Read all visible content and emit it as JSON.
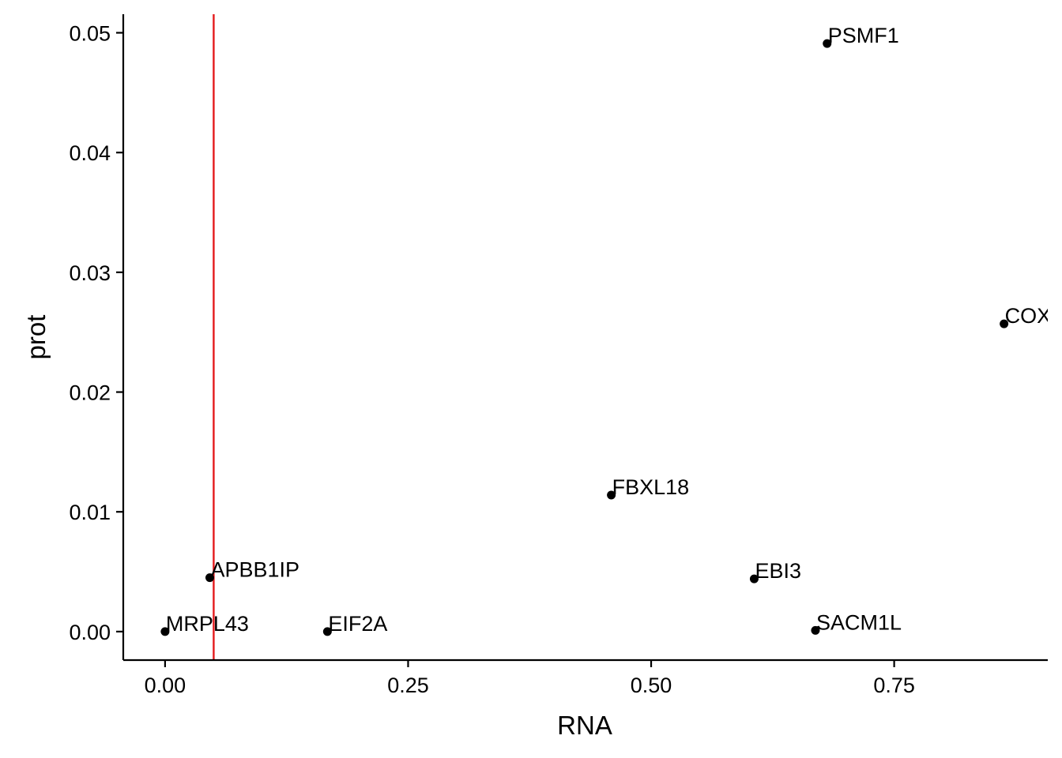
{
  "chart_data": {
    "type": "scatter",
    "xlabel": "RNA",
    "ylabel": "prot",
    "xlim": [
      -0.043,
      0.908
    ],
    "ylim": [
      -0.00238,
      0.05155
    ],
    "x_ticks": [
      0.0,
      0.25,
      0.5,
      0.75
    ],
    "x_tick_labels": [
      "0.00",
      "0.25",
      "0.50",
      "0.75"
    ],
    "y_ticks": [
      0.0,
      0.01,
      0.02,
      0.03,
      0.04,
      0.05
    ],
    "y_tick_labels": [
      "0.00",
      "0.01",
      "0.02",
      "0.03",
      "0.04",
      "0.05"
    ],
    "grid": false,
    "reference_line": {
      "orientation": "vertical",
      "x": 0.05,
      "color": "#e41a1c"
    },
    "point_color": "#000000",
    "points": [
      {
        "label": "PSMF1",
        "x": 0.681,
        "y": 0.0491
      },
      {
        "label": "COX",
        "x": 0.863,
        "y": 0.0257
      },
      {
        "label": "FBXL18",
        "x": 0.459,
        "y": 0.0114
      },
      {
        "label": "APBB1IP",
        "x": 0.046,
        "y": 0.0045
      },
      {
        "label": "EBI3",
        "x": 0.606,
        "y": 0.0044
      },
      {
        "label": "MRPL43",
        "x": 0.0,
        "y": 0.0
      },
      {
        "label": "EIF2A",
        "x": 0.167,
        "y": 0.0
      },
      {
        "label": "SACM1L",
        "x": 0.669,
        "y": 0.0001
      }
    ]
  }
}
